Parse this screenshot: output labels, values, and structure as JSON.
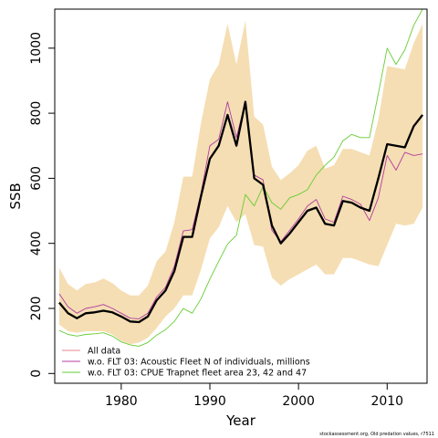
{
  "chart_data": {
    "type": "line",
    "xlabel": "Year",
    "ylabel": "SSB",
    "xlim": [
      1972.5,
      2014.5
    ],
    "ylim": [
      -30,
      1120
    ],
    "x_ticks": [
      1980,
      1990,
      2000,
      2010
    ],
    "y_ticks": [
      0,
      200,
      400,
      600,
      800,
      1000
    ],
    "footnote": "stockassessment.org, Old predation values, r7511",
    "legend_position": "bottom-left",
    "x": [
      1973,
      1974,
      1975,
      1976,
      1977,
      1978,
      1979,
      1980,
      1981,
      1982,
      1983,
      1984,
      1985,
      1986,
      1987,
      1988,
      1989,
      1990,
      1991,
      1992,
      1993,
      1994,
      1995,
      1996,
      1997,
      1998,
      1999,
      2000,
      2001,
      2002,
      2003,
      2004,
      2005,
      2006,
      2007,
      2008,
      2009,
      2010,
      2011,
      2012,
      2013,
      2014
    ],
    "confidence_band": {
      "color": "#F5DEB3",
      "upper": [
        325,
        275,
        255,
        275,
        280,
        292,
        278,
        255,
        240,
        240,
        270,
        345,
        375,
        465,
        605,
        605,
        770,
        905,
        950,
        1075,
        950,
        1085,
        790,
        765,
        635,
        595,
        615,
        640,
        685,
        700,
        630,
        640,
        690,
        690,
        680,
        670,
        780,
        945,
        940,
        935,
        1015,
        1075
      ],
      "lower": [
        150,
        130,
        125,
        130,
        130,
        130,
        120,
        100,
        90,
        95,
        110,
        140,
        175,
        200,
        240,
        240,
        320,
        415,
        450,
        515,
        465,
        490,
        395,
        390,
        295,
        270,
        290,
        305,
        320,
        335,
        305,
        305,
        355,
        355,
        345,
        335,
        330,
        395,
        460,
        455,
        460,
        510
      ]
    },
    "series": [
      {
        "name": "All data",
        "color": "#000000",
        "width": 2.3,
        "values": [
          218,
          185,
          170,
          185,
          188,
          193,
          188,
          175,
          160,
          158,
          175,
          225,
          255,
          315,
          420,
          420,
          545,
          660,
          700,
          795,
          700,
          835,
          600,
          580,
          455,
          400,
          430,
          465,
          500,
          510,
          460,
          455,
          530,
          525,
          510,
          500,
          600,
          705,
          700,
          695,
          760,
          795
        ]
      },
      {
        "name": "w.o. FLT 03: Acoustic Fleet   N of individuals, millions",
        "color": "#B03CA0",
        "width": 0.9,
        "values": [
          245,
          205,
          185,
          200,
          205,
          212,
          200,
          185,
          170,
          168,
          185,
          235,
          265,
          330,
          438,
          442,
          555,
          700,
          720,
          835,
          725,
          835,
          610,
          595,
          440,
          405,
          440,
          475,
          515,
          535,
          475,
          465,
          545,
          535,
          520,
          470,
          540,
          670,
          625,
          680,
          670,
          675
        ]
      },
      {
        "name": "w.o. FLT 03: CPUE Trapnet fleet area 23, 42 and 47",
        "color": "#66CC33",
        "width": 0.9,
        "values": [
          132,
          120,
          115,
          120,
          122,
          125,
          115,
          97,
          88,
          84,
          95,
          118,
          135,
          160,
          200,
          185,
          230,
          290,
          345,
          398,
          425,
          550,
          515,
          575,
          525,
          505,
          540,
          550,
          565,
          610,
          640,
          665,
          715,
          735,
          725,
          725,
          860,
          1000,
          950,
          995,
          1070,
          1120
        ]
      }
    ]
  }
}
